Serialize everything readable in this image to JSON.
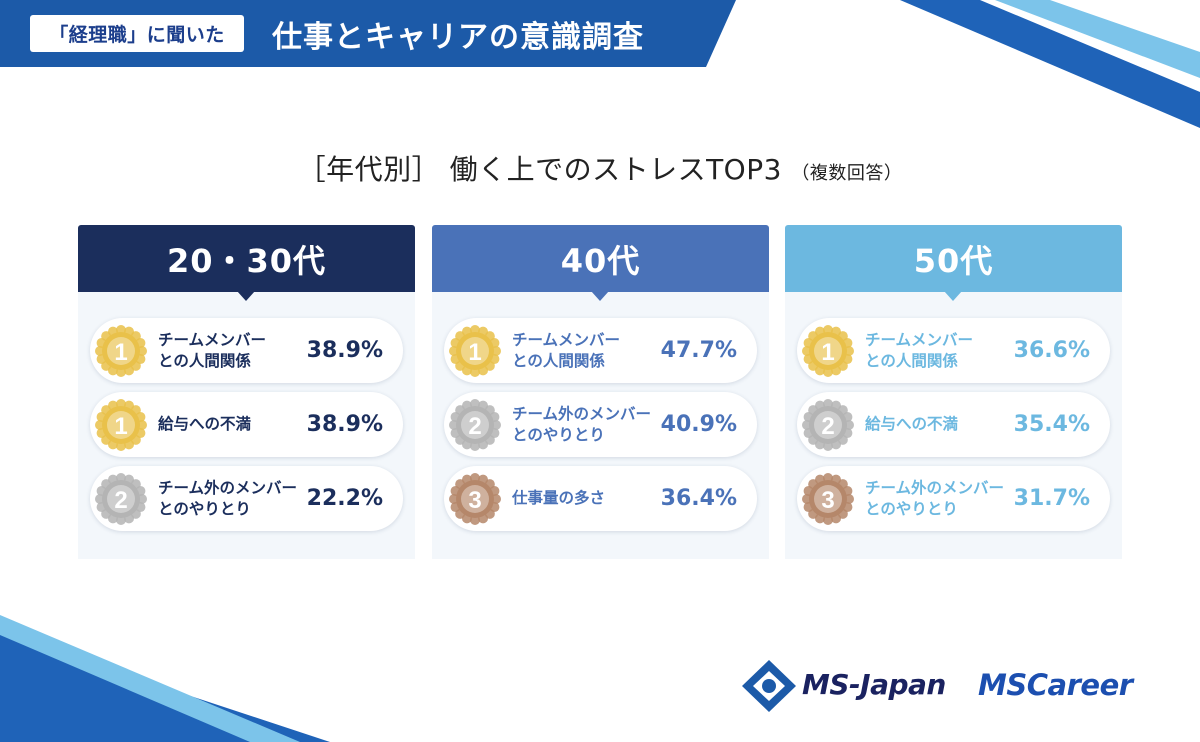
{
  "header": {
    "tag": "「経理職」に聞いた",
    "title": "仕事とキャリアの意識調査"
  },
  "colors": {
    "header_blue": "#1c5aa8",
    "dark_navy": "#1b2e5c",
    "mid_blue": "#4a72b8",
    "light_blue": "#6cb8e0",
    "gold": "#e9c14a",
    "silver": "#b4b4b4",
    "bronze": "#b5876a"
  },
  "chart_data": {
    "type": "table",
    "title": "［年代別］ 働く上でのストレスTOP3",
    "title_note": "（複数回答）",
    "unit": "%",
    "groups": [
      {
        "name": "20・30代",
        "items": [
          {
            "rank": "1",
            "label": "チームメンバー\nとの人間関係",
            "value": 38.9,
            "display": "38.9%"
          },
          {
            "rank": "1",
            "label": "給与への不満",
            "value": 38.9,
            "display": "38.9%"
          },
          {
            "rank": "2",
            "label": "チーム外のメンバー\nとのやりとり",
            "value": 22.2,
            "display": "22.2%"
          }
        ]
      },
      {
        "name": "40代",
        "items": [
          {
            "rank": "1",
            "label": "チームメンバー\nとの人間関係",
            "value": 47.7,
            "display": "47.7%"
          },
          {
            "rank": "2",
            "label": "チーム外のメンバー\nとのやりとり",
            "value": 40.9,
            "display": "40.9%"
          },
          {
            "rank": "3",
            "label": "仕事量の多さ",
            "value": 36.4,
            "display": "36.4%"
          }
        ]
      },
      {
        "name": "50代",
        "items": [
          {
            "rank": "1",
            "label": "チームメンバー\nとの人間関係",
            "value": 36.6,
            "display": "36.6%"
          },
          {
            "rank": "2",
            "label": "給与への不満",
            "value": 35.4,
            "display": "35.4%"
          },
          {
            "rank": "3",
            "label": "チーム外のメンバー\nとのやりとり",
            "value": 31.7,
            "display": "31.7%"
          }
        ]
      }
    ]
  },
  "logos": {
    "ms_japan": "MS-Japan",
    "ms_career": "MSCareer"
  }
}
